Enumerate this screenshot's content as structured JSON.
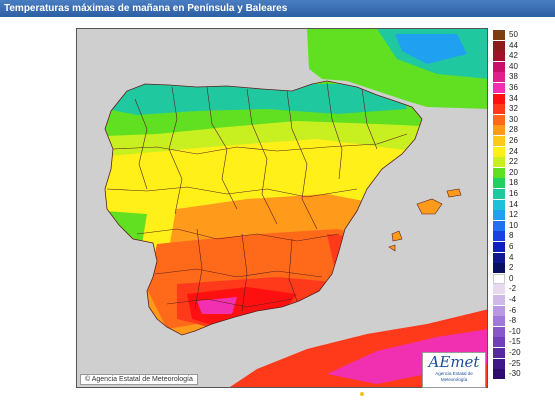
{
  "header": {
    "title": "Temperaturas máximas de mañana en Península y Baleares"
  },
  "map": {
    "credit": "© Agencia Estatal de Meteorología",
    "logo_name": "AEmet",
    "logo_subtitle": "Agencia Estatal de Meteorología",
    "sea_color": "#cfcfcf",
    "border_color": "#5a1e1e"
  },
  "legend": {
    "items": [
      {
        "label": "50",
        "color": "#7b3d12"
      },
      {
        "label": "44",
        "color": "#8c1c1c"
      },
      {
        "label": "42",
        "color": "#a3102a"
      },
      {
        "label": "40",
        "color": "#c8106a"
      },
      {
        "label": "38",
        "color": "#e0208a"
      },
      {
        "label": "36",
        "color": "#f030b0"
      },
      {
        "label": "34",
        "color": "#ff1010"
      },
      {
        "label": "32",
        "color": "#ff3a1a"
      },
      {
        "label": "30",
        "color": "#ff6a1a"
      },
      {
        "label": "28",
        "color": "#ff9a1a"
      },
      {
        "label": "26",
        "color": "#ffc81a"
      },
      {
        "label": "24",
        "color": "#fff01a"
      },
      {
        "label": "22",
        "color": "#c8f020"
      },
      {
        "label": "20",
        "color": "#60e020"
      },
      {
        "label": "18",
        "color": "#20d060"
      },
      {
        "label": "16",
        "color": "#20c8a0"
      },
      {
        "label": "14",
        "color": "#20c0d8"
      },
      {
        "label": "12",
        "color": "#20a0f0"
      },
      {
        "label": "10",
        "color": "#2070f0"
      },
      {
        "label": "8",
        "color": "#1a40e0"
      },
      {
        "label": "6",
        "color": "#1020c0"
      },
      {
        "label": "4",
        "color": "#101890"
      },
      {
        "label": "2",
        "color": "#0a1060"
      },
      {
        "label": "0",
        "color": "#ffffff"
      },
      {
        "label": "-2",
        "color": "#e8d8f0"
      },
      {
        "label": "-4",
        "color": "#d0b8e8"
      },
      {
        "label": "-6",
        "color": "#b898e0"
      },
      {
        "label": "-8",
        "color": "#a078d8"
      },
      {
        "label": "-10",
        "color": "#8858c8"
      },
      {
        "label": "-15",
        "color": "#7040b8"
      },
      {
        "label": "-20",
        "color": "#5828a0"
      },
      {
        "label": "-25",
        "color": "#401888"
      },
      {
        "label": "-30",
        "color": "#300c70"
      }
    ]
  }
}
